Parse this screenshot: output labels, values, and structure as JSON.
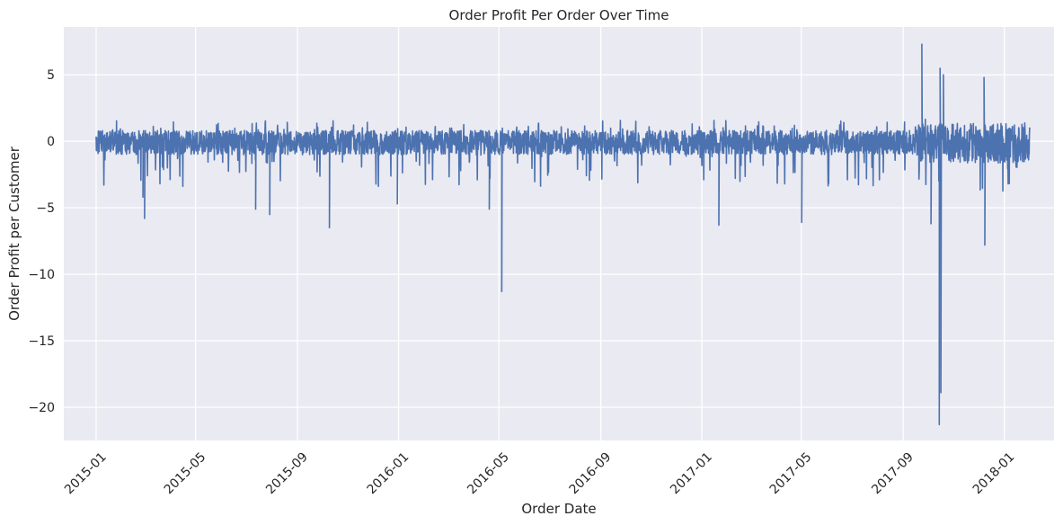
{
  "chart_data": {
    "type": "line",
    "title": "Order Profit Per Order Over Time",
    "xlabel": "Order Date",
    "ylabel": "Order Profit per Customer",
    "x_ticks": [
      "2015-01-01",
      "2015-05-01",
      "2015-09-01",
      "2016-01-01",
      "2016-05-01",
      "2016-09-01",
      "2017-01-01",
      "2017-05-01",
      "2017-09-01",
      "2018-01-01"
    ],
    "x_tick_labels": [
      "2015-01",
      "2015-05",
      "2015-09",
      "2016-01",
      "2016-05",
      "2016-09",
      "2017-01",
      "2017-05",
      "2017-09",
      "2018-01"
    ],
    "y_ticks": [
      5,
      0,
      -5,
      -10,
      -15,
      -20
    ],
    "y_tick_labels": [
      "5",
      "0",
      "−5",
      "−10",
      "−15",
      "−20"
    ],
    "xlim": [
      "2014-11-23",
      "2018-03-02"
    ],
    "ylim": [
      -22.5,
      8.6
    ],
    "x_range": [
      "2015-01-01",
      "2018-01-31"
    ],
    "grid": true,
    "series_color": "#4c72b0",
    "background_color": "#eaeaf2",
    "notable_points": [
      {
        "date": "2015-02-28",
        "value": -5.8
      },
      {
        "date": "2015-02-26",
        "value": -4.2
      },
      {
        "date": "2015-07-12",
        "value": -5.1
      },
      {
        "date": "2015-07-29",
        "value": -5.5
      },
      {
        "date": "2015-10-09",
        "value": -6.5
      },
      {
        "date": "2015-12-30",
        "value": -4.7
      },
      {
        "date": "2016-04-19",
        "value": -5.1
      },
      {
        "date": "2016-05-04",
        "value": -11.3
      },
      {
        "date": "2017-01-21",
        "value": -6.3
      },
      {
        "date": "2017-05-01",
        "value": -6.1
      },
      {
        "date": "2017-09-23",
        "value": 7.3
      },
      {
        "date": "2017-10-04",
        "value": -6.2
      },
      {
        "date": "2017-10-14",
        "value": -21.3
      },
      {
        "date": "2017-10-16",
        "value": -18.9
      },
      {
        "date": "2017-10-15",
        "value": 5.5
      },
      {
        "date": "2017-10-19",
        "value": 5.0
      },
      {
        "date": "2017-12-07",
        "value": 4.8
      },
      {
        "date": "2017-12-08",
        "value": -7.8
      }
    ]
  }
}
